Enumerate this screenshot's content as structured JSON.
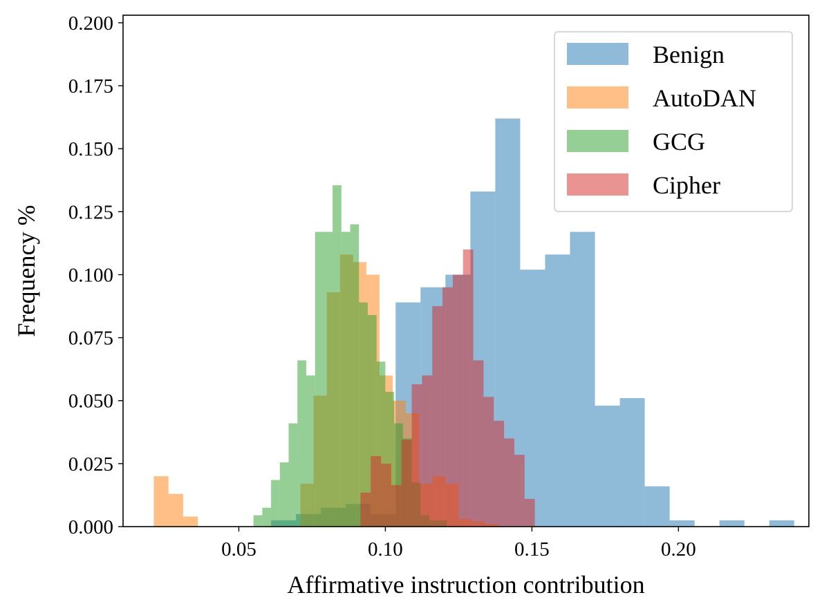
{
  "chart_data": {
    "type": "histogram",
    "title": "",
    "xlabel": "Affirmative instruction contribution",
    "ylabel": "Frequency %",
    "xlim": [
      0.0105,
      0.2445
    ],
    "ylim": [
      0,
      0.203
    ],
    "xticks": [
      0.05,
      0.1,
      0.15,
      0.2
    ],
    "xtick_labels": [
      "0.05",
      "0.10",
      "0.15",
      "0.20"
    ],
    "yticks": [
      0,
      0.025,
      0.05,
      0.075,
      0.1,
      0.125,
      0.15,
      0.175,
      0.2
    ],
    "ytick_labels": [
      "0.000",
      "0.025",
      "0.050",
      "0.075",
      "0.100",
      "0.125",
      "0.150",
      "0.175",
      "0.200"
    ],
    "grid": false,
    "legend_position": "top-right",
    "series": [
      {
        "name": "Benign",
        "color": "#1f77b4",
        "alpha": 0.5,
        "bins": [
          [
            0.061,
            0.0695,
            0.0025
          ],
          [
            0.0695,
            0.078,
            0.005
          ],
          [
            0.078,
            0.0865,
            0.0075
          ],
          [
            0.0865,
            0.095,
            0.009
          ],
          [
            0.095,
            0.1035,
            0.005
          ],
          [
            0.1035,
            0.112,
            0.089
          ],
          [
            0.112,
            0.1205,
            0.095
          ],
          [
            0.1205,
            0.129,
            0.1
          ],
          [
            0.129,
            0.1375,
            0.133
          ],
          [
            0.1375,
            0.146,
            0.162
          ],
          [
            0.146,
            0.1545,
            0.102
          ],
          [
            0.1545,
            0.163,
            0.108
          ],
          [
            0.163,
            0.1715,
            0.117
          ],
          [
            0.1715,
            0.18,
            0.048
          ],
          [
            0.18,
            0.1885,
            0.051
          ],
          [
            0.1885,
            0.197,
            0.016
          ],
          [
            0.197,
            0.2055,
            0.0025
          ],
          [
            0.2055,
            0.214,
            0
          ],
          [
            0.214,
            0.2225,
            0.0025
          ],
          [
            0.2225,
            0.231,
            0
          ],
          [
            0.231,
            0.2395,
            0.0025
          ]
        ]
      },
      {
        "name": "AutoDAN",
        "color": "#ff7f0e",
        "alpha": 0.5,
        "bins": [
          [
            0.021,
            0.026,
            0.02
          ],
          [
            0.026,
            0.031,
            0.013
          ],
          [
            0.031,
            0.036,
            0.004
          ],
          [
            0.071,
            0.0755,
            0.017
          ],
          [
            0.0755,
            0.08,
            0.052
          ],
          [
            0.08,
            0.0845,
            0.093
          ],
          [
            0.0845,
            0.089,
            0.108
          ],
          [
            0.089,
            0.0935,
            0.105
          ],
          [
            0.0935,
            0.098,
            0.1
          ],
          [
            0.098,
            0.1025,
            0.06
          ],
          [
            0.1025,
            0.107,
            0.05
          ],
          [
            0.107,
            0.1115,
            0.045
          ],
          [
            0.1115,
            0.116,
            0.017
          ],
          [
            0.116,
            0.1205,
            0.02
          ],
          [
            0.1205,
            0.125,
            0.017
          ],
          [
            0.125,
            0.1295,
            0.003
          ],
          [
            0.1295,
            0.134,
            0.002
          ],
          [
            0.134,
            0.1385,
            0.001
          ]
        ]
      },
      {
        "name": "GCG",
        "color": "#2ca02c",
        "alpha": 0.5,
        "bins": [
          [
            0.055,
            0.058,
            0.0045
          ],
          [
            0.058,
            0.061,
            0.0075
          ],
          [
            0.061,
            0.064,
            0.0185
          ],
          [
            0.064,
            0.067,
            0.0255
          ],
          [
            0.067,
            0.07,
            0.041
          ],
          [
            0.07,
            0.073,
            0.066
          ],
          [
            0.073,
            0.076,
            0.06
          ],
          [
            0.076,
            0.079,
            0.117
          ],
          [
            0.079,
            0.082,
            0.117
          ],
          [
            0.082,
            0.085,
            0.1355
          ],
          [
            0.085,
            0.088,
            0.117
          ],
          [
            0.088,
            0.091,
            0.12
          ],
          [
            0.091,
            0.094,
            0.089
          ],
          [
            0.094,
            0.097,
            0.084
          ],
          [
            0.097,
            0.1,
            0.0655
          ],
          [
            0.1,
            0.103,
            0.0535
          ],
          [
            0.103,
            0.106,
            0.041
          ],
          [
            0.106,
            0.109,
            0.035
          ],
          [
            0.109,
            0.112,
            0.0175
          ],
          [
            0.112,
            0.115,
            0.0045
          ],
          [
            0.115,
            0.118,
            0.0025
          ],
          [
            0.118,
            0.121,
            0.0025
          ]
        ]
      },
      {
        "name": "Cipher",
        "color": "#d62728",
        "alpha": 0.5,
        "bins": [
          [
            0.0915,
            0.095,
            0.0135
          ],
          [
            0.095,
            0.0985,
            0.028
          ],
          [
            0.0985,
            0.102,
            0.025
          ],
          [
            0.102,
            0.1055,
            0.0165
          ],
          [
            0.1055,
            0.109,
            0.0345
          ],
          [
            0.109,
            0.1125,
            0.0565
          ],
          [
            0.1125,
            0.116,
            0.06
          ],
          [
            0.116,
            0.1195,
            0.0875
          ],
          [
            0.1195,
            0.123,
            0.095
          ],
          [
            0.123,
            0.1265,
            0.1
          ],
          [
            0.1265,
            0.13,
            0.11
          ],
          [
            0.13,
            0.1335,
            0.066
          ],
          [
            0.1335,
            0.137,
            0.0515
          ],
          [
            0.137,
            0.1405,
            0.042
          ],
          [
            0.1405,
            0.144,
            0.035
          ],
          [
            0.144,
            0.1475,
            0.0285
          ],
          [
            0.1475,
            0.151,
            0.011
          ]
        ]
      }
    ]
  }
}
